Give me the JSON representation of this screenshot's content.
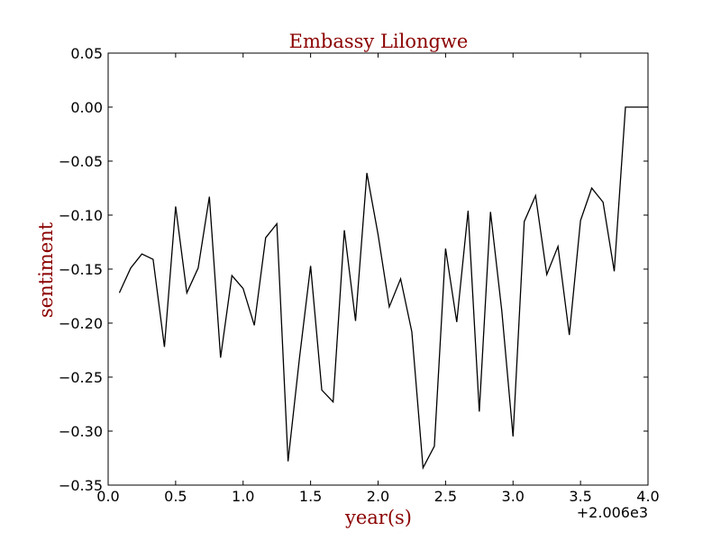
{
  "chart_data": {
    "type": "line",
    "title": "Embassy Lilongwe",
    "xlabel": "year(s)",
    "ylabel": "sentiment",
    "x_offset_label": "+2.006e3",
    "xlim": [
      0.0,
      4.0
    ],
    "ylim": [
      -0.35,
      0.05
    ],
    "x_ticks": [
      0.0,
      0.5,
      1.0,
      1.5,
      2.0,
      2.5,
      3.0,
      3.5,
      4.0
    ],
    "x_tick_labels": [
      "0.0",
      "0.5",
      "1.0",
      "1.5",
      "2.0",
      "2.5",
      "3.0",
      "3.5",
      "4.0"
    ],
    "y_ticks": [
      0.05,
      0.0,
      -0.05,
      -0.1,
      -0.15,
      -0.2,
      -0.25,
      -0.3,
      -0.35
    ],
    "y_tick_labels": [
      "0.05",
      "0.00",
      "−0.05",
      "−0.10",
      "−0.15",
      "−0.20",
      "−0.25",
      "−0.30",
      "−0.35"
    ],
    "grid": false,
    "colors": {
      "line": "#000000",
      "title": "#8b0000",
      "axis_label": "#8b0000"
    },
    "series": [
      {
        "x": [
          0.083,
          0.167,
          0.25,
          0.333,
          0.417,
          0.5,
          0.583,
          0.667,
          0.75,
          0.833,
          0.917,
          1.0,
          1.083,
          1.167,
          1.25,
          1.333,
          1.417,
          1.5,
          1.583,
          1.667,
          1.75,
          1.833,
          1.917,
          2.0,
          2.083,
          2.167,
          2.25,
          2.333,
          2.417,
          2.5,
          2.583,
          2.667,
          2.75,
          2.833,
          2.917,
          3.0,
          3.083,
          3.167,
          3.25,
          3.333,
          3.417,
          3.5,
          3.583,
          3.667,
          3.75,
          3.833,
          3.917,
          4.0
        ],
        "y": [
          -0.172,
          -0.149,
          -0.136,
          -0.141,
          -0.222,
          -0.092,
          -0.172,
          -0.149,
          -0.083,
          -0.232,
          -0.156,
          -0.168,
          -0.202,
          -0.121,
          -0.108,
          -0.328,
          -0.233,
          -0.147,
          -0.262,
          -0.273,
          -0.114,
          -0.198,
          -0.061,
          -0.118,
          -0.185,
          -0.159,
          -0.208,
          -0.334,
          -0.314,
          -0.131,
          -0.199,
          -0.096,
          -0.282,
          -0.097,
          -0.189,
          -0.305,
          -0.106,
          -0.082,
          -0.155,
          -0.129,
          -0.211,
          -0.105,
          -0.075,
          -0.088,
          -0.152,
          0.0,
          0.0,
          0.0
        ]
      }
    ]
  }
}
